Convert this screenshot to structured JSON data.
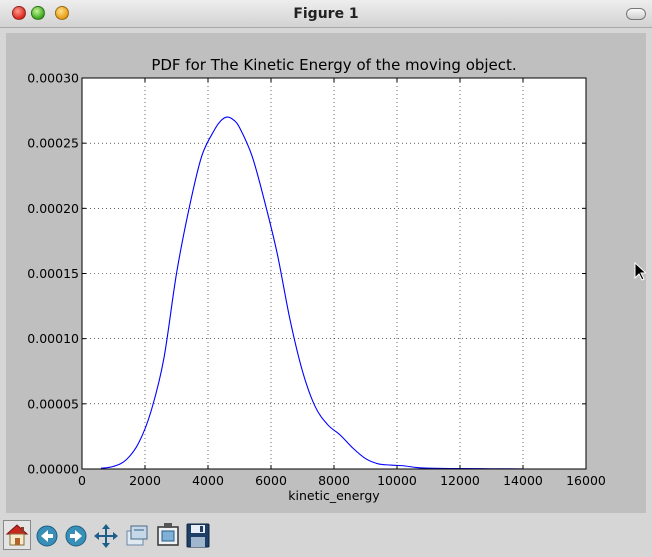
{
  "window": {
    "title": "Figure 1"
  },
  "toolbar": {
    "buttons": [
      {
        "name": "home",
        "icon": "home-icon"
      },
      {
        "name": "back",
        "icon": "back-arrow-icon"
      },
      {
        "name": "forward",
        "icon": "forward-arrow-icon"
      },
      {
        "name": "pan",
        "icon": "move-arrows-icon"
      },
      {
        "name": "zoom",
        "icon": "zoom-rect-icon"
      },
      {
        "name": "subplots",
        "icon": "configure-subplots-icon"
      },
      {
        "name": "save",
        "icon": "floppy-disk-icon"
      }
    ]
  },
  "colors": {
    "line": "#0000ff",
    "figure_bg": "#bfbfbf",
    "axes_bg": "#ffffff"
  },
  "chart_data": {
    "type": "line",
    "title": "PDF for The Kinetic Energy of the moving object.",
    "xlabel": "kinetic_energy",
    "ylabel": "",
    "xlim": [
      0,
      16000
    ],
    "ylim": [
      0,
      0.0003
    ],
    "grid": true,
    "xticks": [
      "0",
      "2000",
      "4000",
      "6000",
      "8000",
      "10000",
      "12000",
      "14000",
      "16000"
    ],
    "yticks": [
      "0.00000",
      "0.00005",
      "0.00010",
      "0.00015",
      "0.00020",
      "0.00025",
      "0.00030"
    ],
    "series": [
      {
        "x": [
          600,
          1000,
          1400,
          1800,
          2200,
          2600,
          3000,
          3400,
          3800,
          4200,
          4400,
          4600,
          4800,
          5000,
          5400,
          5800,
          6200,
          6600,
          7000,
          7400,
          7800,
          8200,
          8600,
          9000,
          9400,
          9800,
          10200,
          10600,
          11000,
          12000,
          13000,
          14000
        ],
        "y": [
          5e-07,
          2e-06,
          7e-06,
          2e-05,
          4.5e-05,
          8.5e-05,
          0.00015,
          0.0002,
          0.00024,
          0.00026,
          0.000267,
          0.00027,
          0.000268,
          0.000262,
          0.00024,
          0.000205,
          0.000165,
          0.000115,
          7.5e-05,
          4.8e-05,
          3.4e-05,
          2.6e-05,
          1.6e-05,
          8e-06,
          4e-06,
          3e-06,
          2.5e-06,
          1.2e-06,
          6e-07,
          3e-07,
          2e-07,
          1e-07
        ]
      }
    ]
  }
}
